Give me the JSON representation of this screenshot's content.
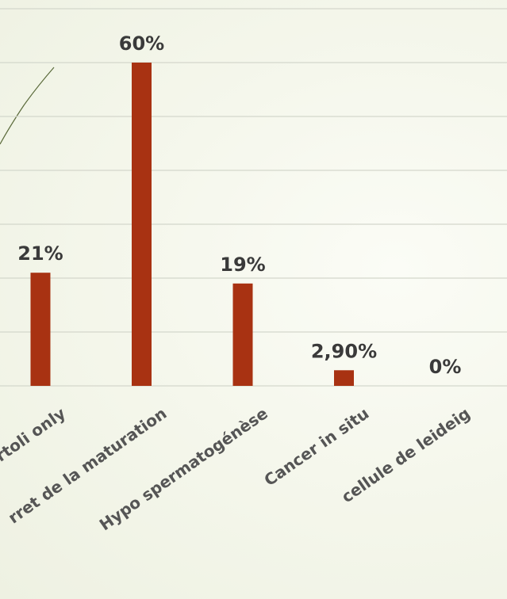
{
  "colors": {
    "bar": "#a83212",
    "grid": "#d4d7cc",
    "text_values": "#3a3a3a",
    "text_categories": "#555555",
    "decor_line": "#5a6a3a"
  },
  "chart_data": {
    "type": "bar",
    "categories": [
      "Sertoli only",
      "Arret de la maturation",
      "Hypo spermatogénèse",
      "Cancer in situ",
      "cellule de leideig"
    ],
    "category_labels": [
      "rtoli only",
      "rret de la maturation",
      "Hypo spermatogénèse",
      "Cancer in situ",
      "cellule de leideig"
    ],
    "values": [
      21,
      60,
      19,
      2.9,
      0
    ],
    "data_labels": [
      "21%",
      "60%",
      "19%",
      "2,90%",
      "0%"
    ],
    "ylim": [
      0,
      70
    ],
    "grid": true,
    "legend": "none"
  }
}
